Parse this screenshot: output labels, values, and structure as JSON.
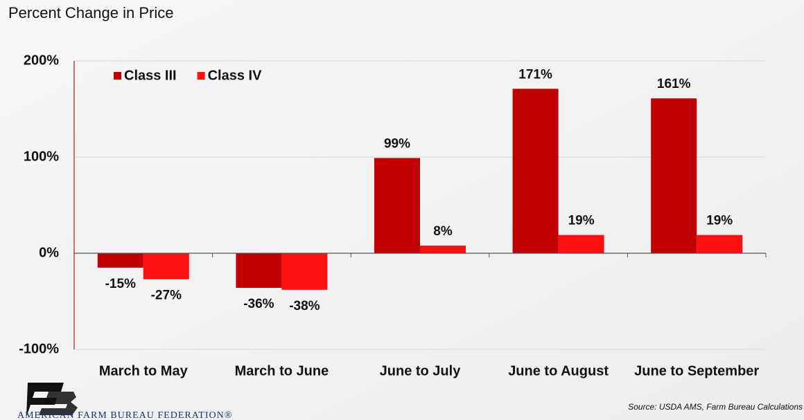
{
  "chart_data": {
    "type": "bar",
    "title": "Percent Change in Price",
    "categories": [
      "March to May",
      "March to June",
      "June to July",
      "June to August",
      "June to September"
    ],
    "series": [
      {
        "name": "Class III",
        "color": "#c00000",
        "values": [
          -15,
          -36,
          99,
          171,
          161
        ],
        "value_labels": [
          "-15%",
          "-36%",
          "99%",
          "171%",
          "161%"
        ]
      },
      {
        "name": "Class IV",
        "color": "#ff1010",
        "values": [
          -27,
          -38,
          8,
          19,
          19
        ],
        "value_labels": [
          "-27%",
          "-38%",
          "8%",
          "19%",
          "19%"
        ]
      }
    ],
    "ylim": [
      -100,
      200
    ],
    "yticks": [
      {
        "value": -100,
        "label": "-100%"
      },
      {
        "value": 0,
        "label": "0%"
      },
      {
        "value": 100,
        "label": "100%"
      },
      {
        "value": 200,
        "label": "200%"
      }
    ],
    "grid": true,
    "legend": "top-left",
    "organization": "AMERICAN FARM BUREAU FEDERATION®",
    "source": "Source: USDA AMS, Farm Bureau Calculations"
  }
}
